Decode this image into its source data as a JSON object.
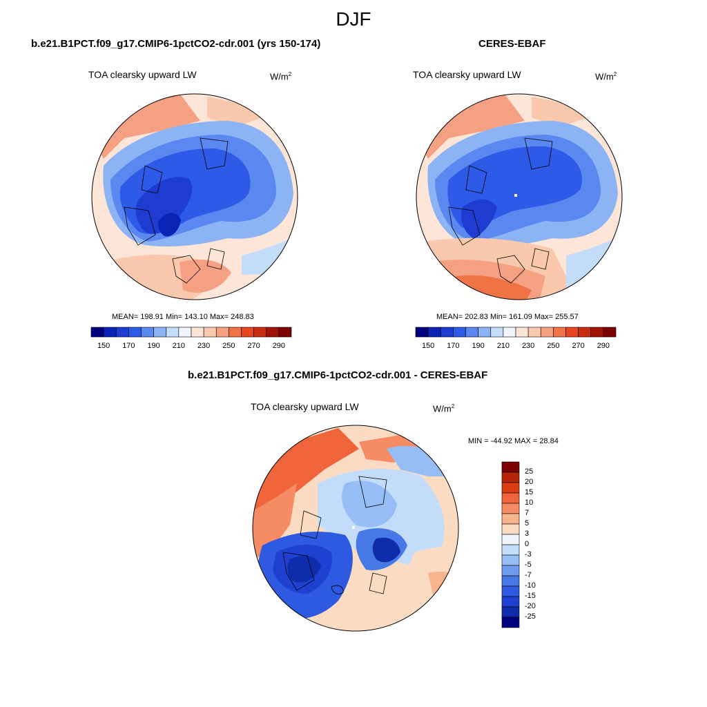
{
  "season_title": "DJF",
  "panels": [
    {
      "title": "b.e21.B1PCT.f09_g17.CMIP6-1pctCO2-cdr.001 (yrs 150-174)",
      "variable_label": "TOA clearsky upward LW",
      "units_base": "W/m",
      "units_exp": "2",
      "stats_text": "MEAN= 198.91  Min= 143.10  Max= 248.83",
      "mean": 198.91,
      "min": 143.1,
      "max": 248.83
    },
    {
      "title": "CERES-EBAF",
      "variable_label": "TOA clearsky upward LW",
      "units_base": "W/m",
      "units_exp": "2",
      "stats_text": "MEAN= 202.83  Min= 161.09  Max= 255.57",
      "mean": 202.83,
      "min": 161.09,
      "max": 255.57
    },
    {
      "title": "b.e21.B1PCT.f09_g17.CMIP6-1pctCO2-cdr.001 - CERES-EBAF",
      "variable_label": "TOA clearsky upward LW",
      "units_base": "W/m",
      "units_exp": "2",
      "stats_text": "MIN = -44.92 MAX =  28.84",
      "min": -44.92,
      "max": 28.84
    }
  ],
  "colorbar_abs": {
    "colors": [
      "#00007f",
      "#0a23b4",
      "#1e3cd2",
      "#2d5ae6",
      "#5a87f0",
      "#8cb4f5",
      "#c3dcfa",
      "#f0f5ff",
      "#fde6d7",
      "#fac8ad",
      "#f5a082",
      "#f07346",
      "#e6461e",
      "#c82d0f",
      "#a01405",
      "#7d0000"
    ],
    "tick_labels": [
      "150",
      "170",
      "190",
      "210",
      "230",
      "250",
      "270",
      "290"
    ]
  },
  "colorbar_diff": {
    "colors": [
      "#7d0000",
      "#b4230a",
      "#dc3c14",
      "#f0643c",
      "#f58c64",
      "#f8b48c",
      "#fbdcc3",
      "#f0f5ff",
      "#c3dcfa",
      "#96bdf5",
      "#6e9bf0",
      "#4678e6",
      "#2d5ae1",
      "#1e41d2",
      "#0f2daa",
      "#00007f"
    ],
    "tick_labels": [
      "25",
      "20",
      "15",
      "10",
      "7",
      "5",
      "3",
      "0",
      "-3",
      "-5",
      "-7",
      "-10",
      "-15",
      "-20",
      "-25"
    ]
  }
}
